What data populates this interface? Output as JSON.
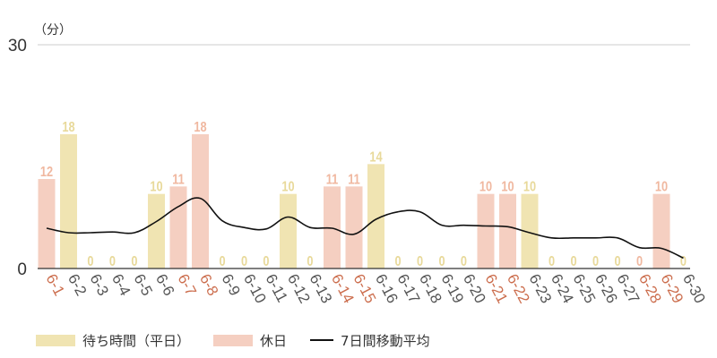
{
  "chart_data": {
    "type": "bar",
    "unit": "（分）",
    "ylim": [
      0,
      30
    ],
    "yticks": [
      0,
      30
    ],
    "grid": "top-line-only",
    "legend_position": "bottom-left",
    "categories": [
      "6-1",
      "6-2",
      "6-3",
      "6-4",
      "6-5",
      "6-6",
      "6-7",
      "6-8",
      "6-9",
      "6-10",
      "6-11",
      "6-12",
      "6-13",
      "6-14",
      "6-15",
      "6-16",
      "6-17",
      "6-18",
      "6-19",
      "6-20",
      "6-21",
      "6-22",
      "6-23",
      "6-24",
      "6-25",
      "6-26",
      "6-27",
      "6-28",
      "6-29",
      "6-30"
    ],
    "day_type": [
      "holiday",
      "weekday",
      "weekday",
      "weekday",
      "weekday",
      "weekday",
      "holiday",
      "holiday",
      "weekday",
      "weekday",
      "weekday",
      "weekday",
      "weekday",
      "holiday",
      "holiday",
      "weekday",
      "weekday",
      "weekday",
      "weekday",
      "weekday",
      "holiday",
      "holiday",
      "weekday",
      "weekday",
      "weekday",
      "weekday",
      "weekday",
      "holiday",
      "holiday",
      "weekday"
    ],
    "values": [
      12,
      18,
      0,
      0,
      0,
      10,
      11,
      18,
      0,
      0,
      0,
      10,
      0,
      11,
      11,
      14,
      0,
      0,
      0,
      0,
      10,
      10,
      10,
      0,
      0,
      0,
      0,
      0,
      10,
      0
    ],
    "series": [
      {
        "name": "待ち時間（平日）",
        "kind": "bar",
        "color": "#f0e4b2"
      },
      {
        "name": "休日",
        "kind": "bar",
        "color": "#f5cfc1"
      },
      {
        "name": "7日間移動平均",
        "kind": "line",
        "color": "#111111",
        "values": [
          5.4,
          4.8,
          4.8,
          4.9,
          4.8,
          6.3,
          8.3,
          9.4,
          6.4,
          5.5,
          5.3,
          6.9,
          5.5,
          5.4,
          4.6,
          6.6,
          7.6,
          7.6,
          5.8,
          5.8,
          5.7,
          5.6,
          4.8,
          4.1,
          4.1,
          4.1,
          4.1,
          2.8,
          2.7,
          1.4
        ]
      }
    ],
    "colors": {
      "weekday_bar": "#f0e4b2",
      "holiday_bar": "#f5cfc1",
      "weekday_label": "#e8d99a",
      "holiday_label": "#f0b8a0",
      "weekday_tick": "#555555",
      "holiday_tick": "#cc6e4e",
      "axis": "#333333",
      "gridline": "#cccccc"
    }
  },
  "legend": {
    "items": [
      {
        "label": "待ち時間（平日）",
        "kind": "bar",
        "color": "#f0e4b2"
      },
      {
        "label": "休日",
        "kind": "bar",
        "color": "#f5cfc1"
      },
      {
        "label": "7日間移動平均",
        "kind": "line",
        "color": "#111111"
      }
    ]
  }
}
